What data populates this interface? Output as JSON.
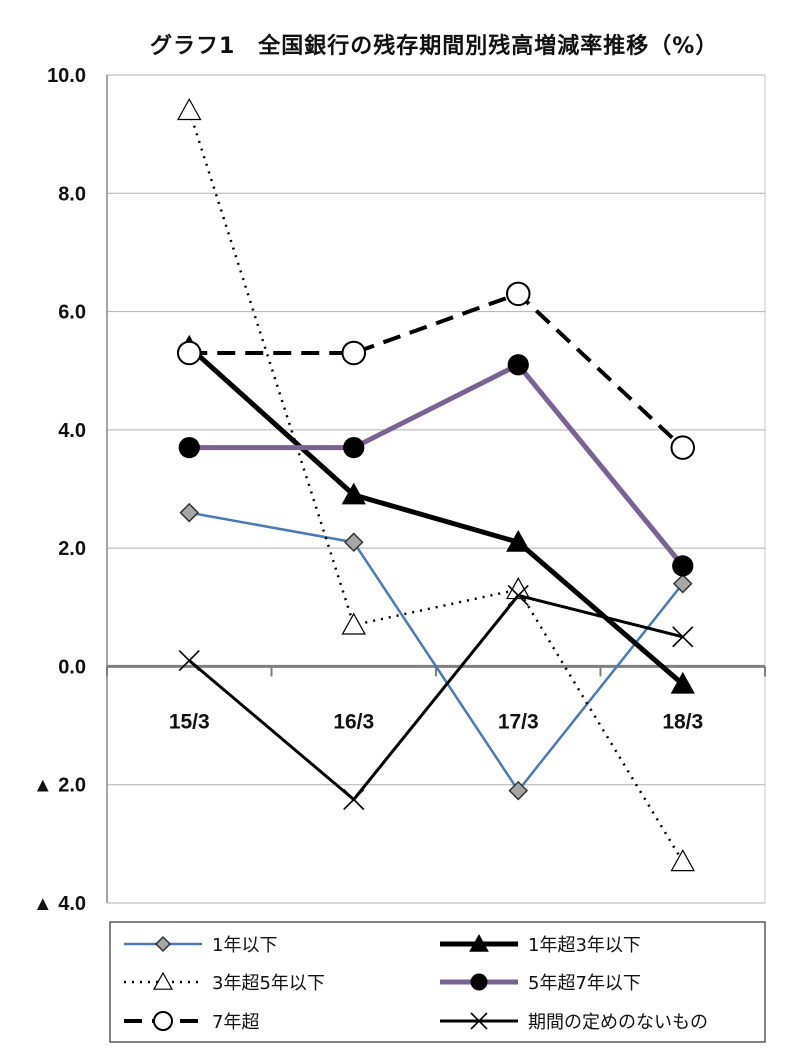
{
  "chart_data": {
    "type": "line",
    "title": "グラフ1　全国銀行の残存期間別残高増減率推移（%）",
    "categories": [
      "15/3",
      "16/3",
      "17/3",
      "18/3"
    ],
    "ylim": [
      -4.0,
      10.0
    ],
    "yticks": [
      10.0,
      8.0,
      6.0,
      4.0,
      2.0,
      0.0,
      -2.0,
      -4.0
    ],
    "ytick_labels": [
      "10.0",
      "8.0",
      "6.0",
      "4.0",
      "2.0",
      "0.0",
      "▲ 2.0",
      "▲ 4.0"
    ],
    "grid": true,
    "legend_position": "bottom",
    "series": [
      {
        "name": "1年以下",
        "values": [
          2.6,
          2.1,
          -2.1,
          1.4
        ],
        "color": "#4a7ab4",
        "marker": "diamond",
        "dash": "solid",
        "width": 2.5
      },
      {
        "name": "1年超3年以下",
        "values": [
          5.4,
          2.9,
          2.1,
          -0.3
        ],
        "color": "#000000",
        "marker": "triangle-filled",
        "dash": "solid",
        "width": 5
      },
      {
        "name": "3年超5年以下",
        "values": [
          9.4,
          0.7,
          1.3,
          -3.3
        ],
        "color": "#000000",
        "marker": "triangle-open",
        "dash": "dotted",
        "width": 2.5
      },
      {
        "name": "5年超7年以下",
        "values": [
          3.7,
          3.7,
          5.1,
          1.7
        ],
        "color": "#7b6294",
        "marker": "circle-filled",
        "dash": "solid",
        "width": 5
      },
      {
        "name": "7年超",
        "values": [
          5.3,
          5.3,
          6.3,
          3.7
        ],
        "color": "#000000",
        "marker": "circle-open",
        "dash": "dashed",
        "width": 4
      },
      {
        "name": "期間の定めのないもの",
        "values": [
          0.1,
          -2.25,
          1.2,
          0.5
        ],
        "color": "#000000",
        "marker": "x",
        "dash": "solid",
        "width": 3
      }
    ]
  }
}
